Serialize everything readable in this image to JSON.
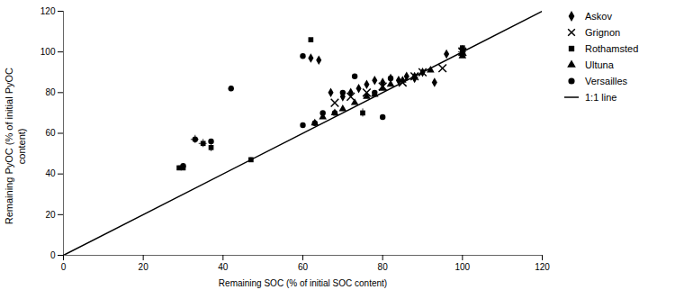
{
  "chart_data": {
    "type": "scatter",
    "xlabel": "Remaining SOC (% of initial SOC content)",
    "ylabel": "Remaining PyOC (% of initial PyOC\ncontent)",
    "xlim": [
      0,
      120
    ],
    "ylim": [
      0,
      120
    ],
    "xticks": [
      0,
      20,
      40,
      60,
      80,
      100,
      120
    ],
    "yticks": [
      0,
      20,
      40,
      60,
      80,
      100,
      120
    ],
    "legend": "right",
    "series": [
      {
        "name": "Askov",
        "type": "scatter",
        "marker": "diamond",
        "color": "#000000",
        "x": [
          62,
          64,
          67,
          70,
          72,
          74,
          76,
          78,
          80,
          82,
          84,
          86,
          88,
          90,
          93,
          96,
          100
        ],
        "y": [
          97,
          96,
          80,
          78,
          80,
          82,
          84,
          86,
          85,
          87,
          86,
          88,
          87,
          90,
          85,
          99,
          101
        ]
      },
      {
        "name": "Grignon",
        "type": "scatter",
        "marker": "x",
        "color": "#000000",
        "x": [
          68,
          72,
          76,
          80,
          85,
          88,
          90,
          95,
          100
        ],
        "y": [
          75,
          78,
          80,
          83,
          85,
          88,
          90,
          92,
          100
        ]
      },
      {
        "name": "Rothamsted",
        "type": "scatter",
        "marker": "square",
        "color": "#000000",
        "x": [
          29,
          30,
          35,
          37,
          47,
          62,
          75,
          100,
          100
        ],
        "y": [
          43,
          43,
          55,
          53,
          47,
          106,
          70,
          100,
          102
        ],
        "xerr": [
          0,
          0,
          1,
          0,
          0,
          0,
          0,
          1,
          1
        ],
        "yerr": [
          1,
          1,
          2,
          2,
          1,
          0,
          2,
          1,
          1
        ]
      },
      {
        "name": "Ultuna",
        "type": "scatter",
        "marker": "triangle",
        "color": "#000000",
        "x": [
          63,
          65,
          68,
          70,
          73,
          76,
          78,
          80,
          82,
          85,
          88,
          92,
          100
        ],
        "y": [
          65,
          68,
          70,
          72,
          75,
          78,
          79,
          82,
          84,
          86,
          88,
          91,
          98
        ]
      },
      {
        "name": "Versailles",
        "type": "scatter",
        "marker": "circle",
        "color": "#000000",
        "x": [
          30,
          33,
          37,
          42,
          60,
          60,
          63,
          65,
          68,
          70,
          73,
          78,
          80,
          82,
          100
        ],
        "y": [
          44,
          57,
          56,
          82,
          98,
          64,
          65,
          70,
          70,
          80,
          88,
          80,
          68,
          87,
          99
        ],
        "xerr": [
          0,
          1,
          0,
          0,
          0,
          0,
          0,
          0,
          0,
          0,
          0,
          0,
          0,
          0,
          1
        ],
        "yerr": [
          1,
          2,
          1,
          1,
          0,
          0,
          0,
          0,
          0,
          0,
          0,
          0,
          0,
          0,
          1
        ]
      },
      {
        "name": "1:1 line",
        "type": "line",
        "line_style": "solid",
        "color": "#000000",
        "x": [
          0,
          120
        ],
        "y": [
          0,
          120
        ]
      }
    ]
  }
}
